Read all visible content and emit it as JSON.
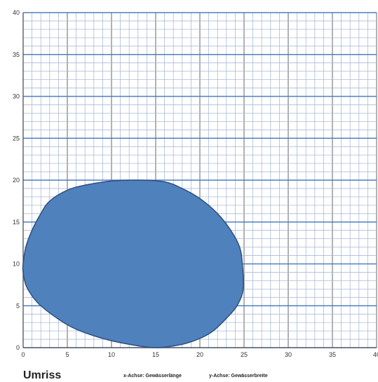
{
  "chart_data": {
    "type": "area",
    "title": "Umriss",
    "xlabel": "x-Achse: Gewässerlänge",
    "ylabel": "y-Achse: Gewässerbreite",
    "xlim": [
      0,
      40
    ],
    "ylim": [
      0,
      40
    ],
    "x_ticks": [
      "0",
      "5",
      "10",
      "15",
      "20",
      "25",
      "30",
      "35",
      "40"
    ],
    "y_ticks": [
      "0",
      "5",
      "10",
      "15",
      "20",
      "25",
      "30",
      "35",
      "40"
    ],
    "grid": true,
    "minor_grid_step": 1,
    "major_grid_step": 5,
    "fill_color": "#4f81bd",
    "line_color": "#2f4f7f",
    "series": [
      {
        "points": [
          [
            0,
            10
          ],
          [
            0.3,
            12
          ],
          [
            1,
            14
          ],
          [
            2,
            16
          ],
          [
            3,
            17.5
          ],
          [
            5,
            18.8
          ],
          [
            7,
            19.4
          ],
          [
            10,
            19.9
          ],
          [
            13,
            20
          ],
          [
            16,
            19.8
          ],
          [
            18,
            19
          ],
          [
            20,
            17.8
          ],
          [
            22,
            16
          ],
          [
            23.5,
            14
          ],
          [
            24.5,
            12
          ],
          [
            24.8,
            10
          ],
          [
            24.9,
            7
          ],
          [
            24.2,
            5
          ],
          [
            23,
            3.5
          ],
          [
            21.5,
            2
          ],
          [
            20,
            1.1
          ],
          [
            18,
            0.4
          ],
          [
            15,
            0
          ],
          [
            12,
            0.4
          ],
          [
            9,
            1.1
          ],
          [
            6,
            2.2
          ],
          [
            4,
            3.4
          ],
          [
            2,
            5
          ],
          [
            1,
            6.2
          ],
          [
            0.3,
            7.5
          ],
          [
            0,
            9
          ]
        ]
      }
    ]
  }
}
